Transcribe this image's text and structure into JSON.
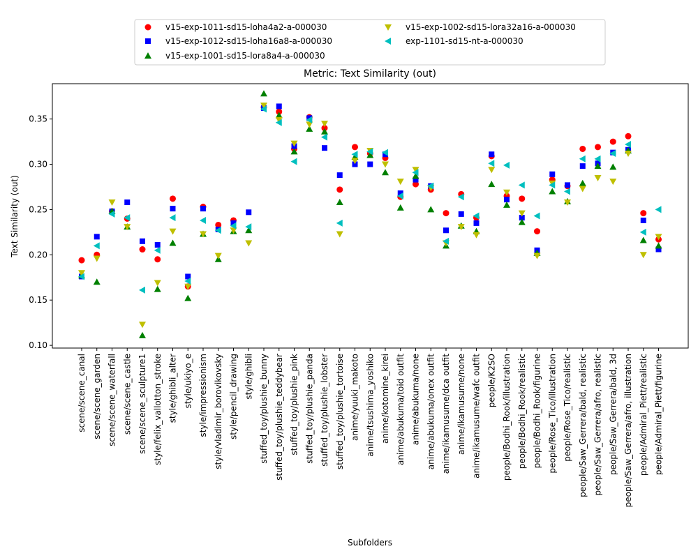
{
  "chart_data": {
    "type": "scatter",
    "title": "Metric: Text Similarity (out)",
    "xlabel": "Subfolders",
    "ylabel": "Text Similarity (out)",
    "ylim": [
      0.097,
      0.389
    ],
    "yticks": [
      "0.10",
      "0.15",
      "0.20",
      "0.25",
      "0.30",
      "0.35"
    ],
    "yticks_values": [
      0.1,
      0.15,
      0.2,
      0.25,
      0.3,
      0.35
    ],
    "grid": false,
    "legend_position": "top-center",
    "categories": [
      "scene/scene_canal",
      "scene/scene_garden",
      "scene/scene_waterfall",
      "scene/scene_castle",
      "scene/scene_sculpture1",
      "style/felix_vallotton_stroke",
      "style/ghibli_alter",
      "style/ukiyo_e",
      "style/impressionism",
      "style/vladimir_borovikovsky",
      "style/pencil_drawing",
      "style/ghibli",
      "stuffed_toy/plushie_bunny",
      "stuffed_toy/plushie_teddybear",
      "stuffed_toy/plushie_pink",
      "stuffed_toy/plushie_panda",
      "stuffed_toy/plushie_lobster",
      "stuffed_toy/plushie_tortoise",
      "anime/yuuki_makoto",
      "anime/tsushima_yoshiko",
      "anime/kotomine_kirei",
      "anime/abukuma/toid outfit",
      "anime/abukuma/none",
      "anime/abukuma/onex outfit",
      "anime/ikamusume/dca outfit",
      "anime/ikamusume/none",
      "anime/ikamusume/wafc outfit",
      "people/K2SO",
      "people/Bodhi_Rook/illustration",
      "people/Bodhi_Rook/realistic",
      "people/Bodhi_Rook/figurine",
      "people/Rose_Tico/illustration",
      "people/Rose_Tico/realistic",
      "people/Saw_Gerrera/bald, realistic",
      "people/Saw_Gerrera/afro, realistic",
      "people/Saw_Gerrera/bald, 3d",
      "people/Saw_Gerrera/afro, illustration",
      "people/Admiral_Piett/realistic",
      "people/Admiral_Piett/figurine"
    ],
    "series": [
      {
        "name": "v15-exp-1011-sd15-loha4a2-a-000030",
        "color": "#ff0000",
        "marker": "circle",
        "values": [
          0.194,
          0.2,
          0.248,
          0.24,
          0.206,
          0.195,
          0.262,
          0.165,
          0.253,
          0.233,
          0.238,
          null,
          0.363,
          0.358,
          0.317,
          0.352,
          0.34,
          0.272,
          0.319,
          0.312,
          0.307,
          0.264,
          0.278,
          0.272,
          0.246,
          0.267,
          0.241,
          0.309,
          0.265,
          0.262,
          0.226,
          0.283,
          0.276,
          0.317,
          0.319,
          0.325,
          0.331,
          0.246,
          0.217
        ]
      },
      {
        "name": "v15-exp-1012-sd15-loha16a8-a-000030",
        "color": "#0000ff",
        "marker": "square",
        "values": [
          0.176,
          0.22,
          0.248,
          0.258,
          0.215,
          0.211,
          0.251,
          0.176,
          0.251,
          0.228,
          0.235,
          0.247,
          0.362,
          0.364,
          0.32,
          0.351,
          0.318,
          0.288,
          0.3,
          0.3,
          0.311,
          0.268,
          0.283,
          0.276,
          0.227,
          0.245,
          0.235,
          0.311,
          0.261,
          0.241,
          0.205,
          0.289,
          0.277,
          0.298,
          0.301,
          0.313,
          0.316,
          0.238,
          0.206
        ]
      },
      {
        "name": "v15-exp-1001-sd15-lora8a4-a-000030",
        "color": "#008000",
        "marker": "triangle-up",
        "values": [
          0.177,
          0.17,
          0.248,
          0.231,
          0.111,
          0.162,
          0.213,
          0.152,
          0.223,
          0.195,
          0.226,
          0.227,
          0.378,
          0.354,
          0.314,
          0.339,
          0.336,
          0.258,
          0.308,
          0.31,
          0.291,
          0.252,
          0.287,
          0.25,
          0.21,
          0.232,
          0.226,
          0.278,
          0.255,
          0.236,
          0.202,
          0.27,
          0.259,
          0.279,
          0.298,
          0.297,
          0.315,
          0.216,
          0.21
        ]
      },
      {
        "name": "v15-exp-1002-sd15-lora32a16-a-000030",
        "color": "#bfbf00",
        "marker": "triangle-down",
        "values": [
          0.18,
          0.196,
          0.258,
          0.231,
          0.123,
          0.169,
          0.226,
          0.165,
          0.223,
          0.199,
          0.227,
          0.213,
          0.365,
          0.349,
          0.323,
          0.344,
          0.345,
          0.223,
          0.304,
          0.315,
          0.3,
          0.281,
          0.294,
          0.274,
          0.213,
          0.231,
          0.222,
          0.294,
          0.269,
          0.246,
          0.199,
          0.279,
          0.258,
          0.273,
          0.285,
          0.281,
          0.312,
          0.2,
          0.22
        ]
      },
      {
        "name": "exp-1101-sd15-nt-a-000030",
        "color": "#00bfbf",
        "marker": "triangle-left",
        "values": [
          0.176,
          0.21,
          0.245,
          0.241,
          0.161,
          0.205,
          0.241,
          0.171,
          0.238,
          0.227,
          0.232,
          0.231,
          0.361,
          0.346,
          0.303,
          0.349,
          0.33,
          0.235,
          0.311,
          0.314,
          0.313,
          0.265,
          0.291,
          0.276,
          0.215,
          0.264,
          0.243,
          0.301,
          0.299,
          0.277,
          0.243,
          0.277,
          0.27,
          0.306,
          0.306,
          0.312,
          0.322,
          0.225,
          0.25
        ]
      }
    ]
  }
}
